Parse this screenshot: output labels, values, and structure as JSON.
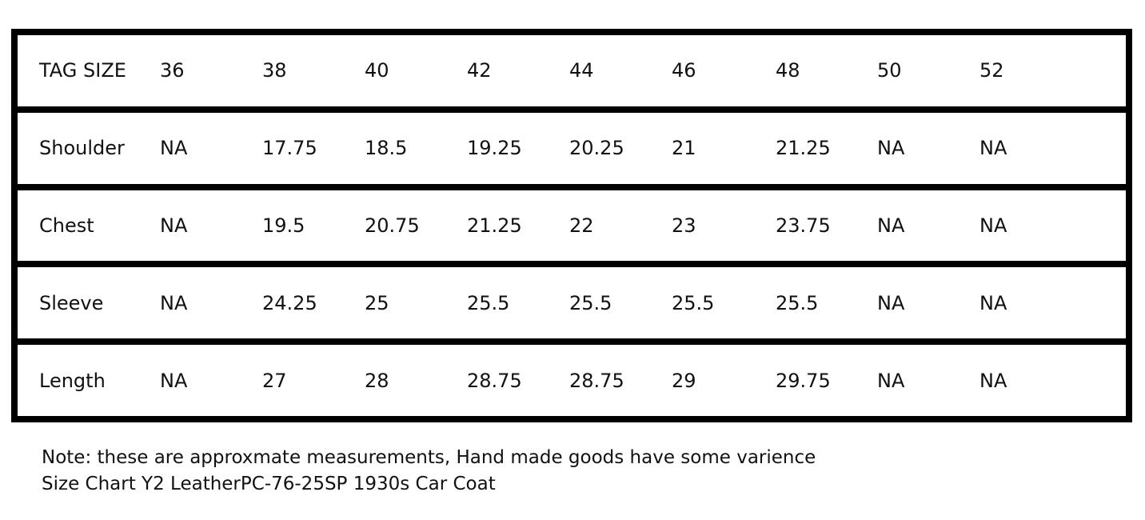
{
  "table": {
    "header": [
      "TAG SIZE",
      "36",
      "38",
      "40",
      "42",
      "44",
      "46",
      "48",
      "50",
      "52"
    ],
    "rows": [
      [
        "Shoulder",
        "NA",
        "17.75",
        "18.5",
        "19.25",
        "20.25",
        "21",
        "21.25",
        "NA",
        "NA"
      ],
      [
        "Chest",
        "NA",
        "19.5",
        "20.75",
        "21.25",
        "22",
        "23",
        "23.75",
        "NA",
        "NA"
      ],
      [
        "Sleeve",
        "NA",
        "24.25",
        "25",
        "25.5",
        "25.5",
        "25.5",
        "25.5",
        "NA",
        "NA"
      ],
      [
        "Length",
        "NA",
        "27",
        "28",
        "28.75",
        "28.75",
        "29",
        "29.75",
        "NA",
        "NA"
      ]
    ]
  },
  "notes": [
    "Note: these are approxmate measurements, Hand made goods have some varience",
    "Size Chart Y2 LeatherPC-76-25SP 1930s Car Coat"
  ]
}
